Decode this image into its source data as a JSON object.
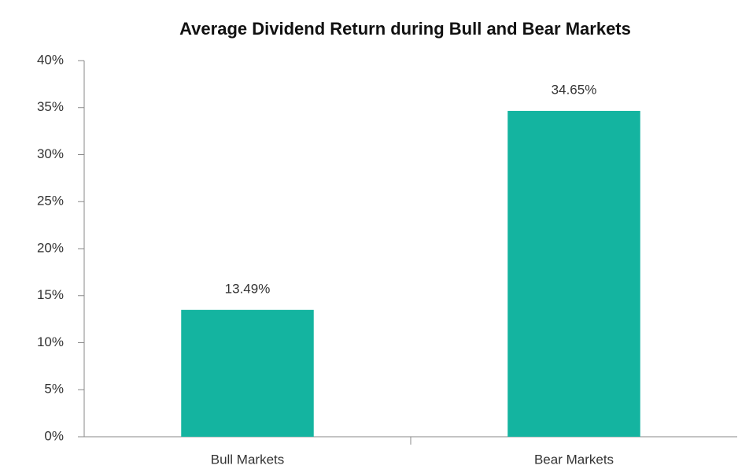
{
  "chart_data": {
    "type": "bar",
    "title": "Average Dividend Return during Bull and Bear Markets",
    "categories": [
      "Bull Markets",
      "Bear Markets"
    ],
    "values": [
      13.49,
      34.65
    ],
    "value_labels": [
      "13.49%",
      "34.65%"
    ],
    "color": "#14b4a0",
    "ylim": [
      0,
      40
    ],
    "yticks": [
      {
        "value": 0,
        "label": "0%"
      },
      {
        "value": 5,
        "label": "5%"
      },
      {
        "value": 10,
        "label": "10%"
      },
      {
        "value": 15,
        "label": "15%"
      },
      {
        "value": 20,
        "label": "20%"
      },
      {
        "value": 25,
        "label": "25%"
      },
      {
        "value": 30,
        "label": "30%"
      },
      {
        "value": 35,
        "label": "35%"
      },
      {
        "value": 40,
        "label": "40%"
      }
    ],
    "grid": false
  }
}
